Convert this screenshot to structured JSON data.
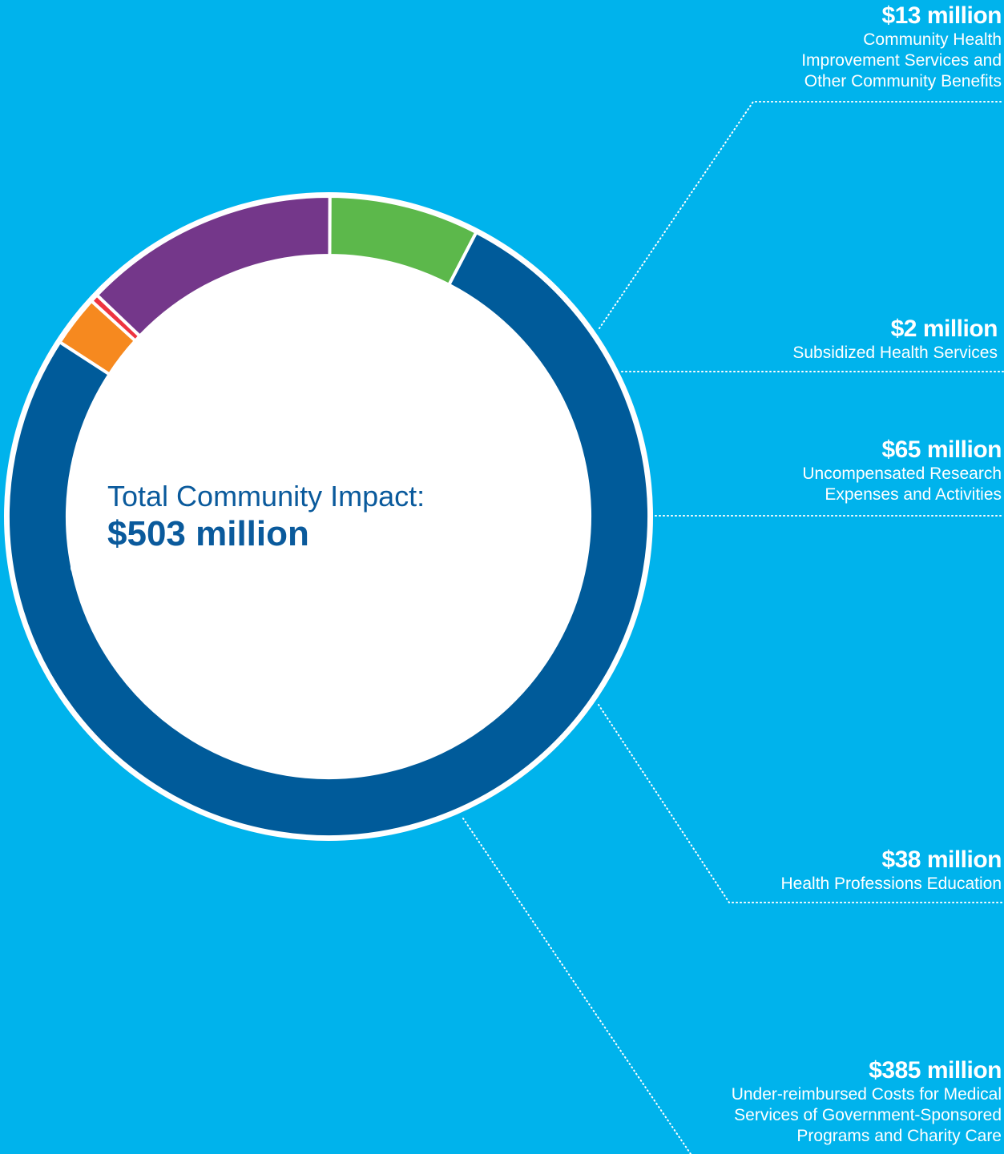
{
  "chart_data": {
    "type": "donut",
    "unit": "$ million",
    "total_label": "Total Community Impact:",
    "total_value": "$503 million",
    "slices": [
      {
        "amount": 13,
        "label": "$13 million",
        "description": "Community Health Improvement Services and Other Community Benefits",
        "color": "#f6891f"
      },
      {
        "amount": 2,
        "label": "$2 million",
        "description": "Subsidized Health Services",
        "color": "#ee3440"
      },
      {
        "amount": 65,
        "label": "$65 million",
        "description": "Uncompensated Research Expenses and Activities",
        "color": "#74378a"
      },
      {
        "amount": 38,
        "label": "$38 million",
        "description": "Health Professions Education",
        "color": "#5cb84b"
      },
      {
        "amount": 385,
        "label": "$385 million",
        "description": "Under-reimbursed Costs for Medical Services of Government-Sponsored Programs and Charity Care",
        "color": "#005b9a"
      }
    ]
  },
  "colors": {
    "background": "#00b3ec",
    "ring_border": "#ffffff",
    "leader_line": "#ffffff"
  }
}
